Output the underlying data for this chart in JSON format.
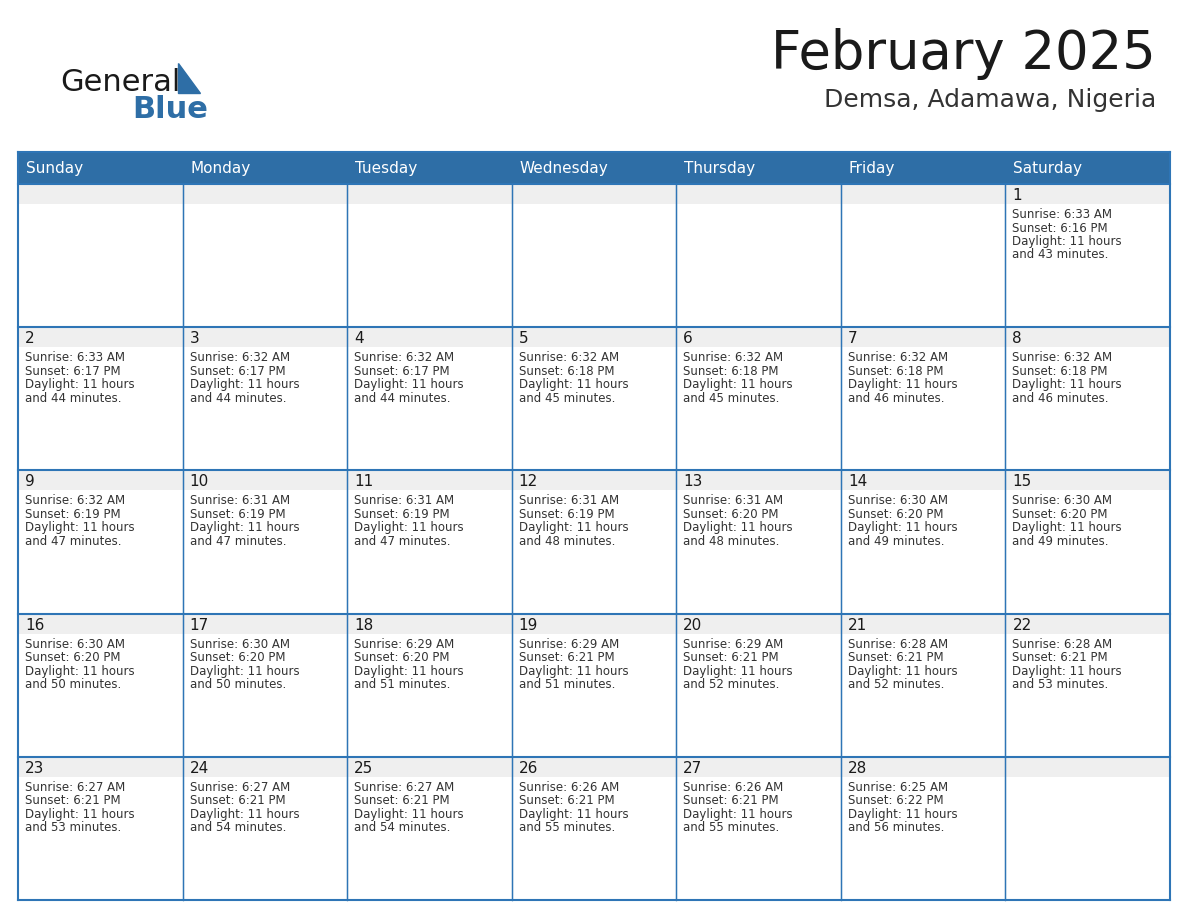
{
  "title": "February 2025",
  "subtitle": "Demsa, Adamawa, Nigeria",
  "header_bg": "#2E6EA6",
  "header_text": "#FFFFFF",
  "cell_bg_number": "#EFEFEF",
  "cell_bg_content": "#FFFFFF",
  "border_color": "#2E75B6",
  "day_names": [
    "Sunday",
    "Monday",
    "Tuesday",
    "Wednesday",
    "Thursday",
    "Friday",
    "Saturday"
  ],
  "title_color": "#1a1a1a",
  "subtitle_color": "#333333",
  "day_number_color": "#1a1a1a",
  "cell_text_color": "#333333",
  "logo_general_color": "#1a1a1a",
  "logo_blue_color": "#2E6EA6",
  "logo_triangle_color": "#2E6EA6",
  "weeks": [
    [
      {
        "day": 0,
        "info": ""
      },
      {
        "day": 0,
        "info": ""
      },
      {
        "day": 0,
        "info": ""
      },
      {
        "day": 0,
        "info": ""
      },
      {
        "day": 0,
        "info": ""
      },
      {
        "day": 0,
        "info": ""
      },
      {
        "day": 1,
        "info": "Sunrise: 6:33 AM\nSunset: 6:16 PM\nDaylight: 11 hours\nand 43 minutes."
      }
    ],
    [
      {
        "day": 2,
        "info": "Sunrise: 6:33 AM\nSunset: 6:17 PM\nDaylight: 11 hours\nand 44 minutes."
      },
      {
        "day": 3,
        "info": "Sunrise: 6:32 AM\nSunset: 6:17 PM\nDaylight: 11 hours\nand 44 minutes."
      },
      {
        "day": 4,
        "info": "Sunrise: 6:32 AM\nSunset: 6:17 PM\nDaylight: 11 hours\nand 44 minutes."
      },
      {
        "day": 5,
        "info": "Sunrise: 6:32 AM\nSunset: 6:18 PM\nDaylight: 11 hours\nand 45 minutes."
      },
      {
        "day": 6,
        "info": "Sunrise: 6:32 AM\nSunset: 6:18 PM\nDaylight: 11 hours\nand 45 minutes."
      },
      {
        "day": 7,
        "info": "Sunrise: 6:32 AM\nSunset: 6:18 PM\nDaylight: 11 hours\nand 46 minutes."
      },
      {
        "day": 8,
        "info": "Sunrise: 6:32 AM\nSunset: 6:18 PM\nDaylight: 11 hours\nand 46 minutes."
      }
    ],
    [
      {
        "day": 9,
        "info": "Sunrise: 6:32 AM\nSunset: 6:19 PM\nDaylight: 11 hours\nand 47 minutes."
      },
      {
        "day": 10,
        "info": "Sunrise: 6:31 AM\nSunset: 6:19 PM\nDaylight: 11 hours\nand 47 minutes."
      },
      {
        "day": 11,
        "info": "Sunrise: 6:31 AM\nSunset: 6:19 PM\nDaylight: 11 hours\nand 47 minutes."
      },
      {
        "day": 12,
        "info": "Sunrise: 6:31 AM\nSunset: 6:19 PM\nDaylight: 11 hours\nand 48 minutes."
      },
      {
        "day": 13,
        "info": "Sunrise: 6:31 AM\nSunset: 6:20 PM\nDaylight: 11 hours\nand 48 minutes."
      },
      {
        "day": 14,
        "info": "Sunrise: 6:30 AM\nSunset: 6:20 PM\nDaylight: 11 hours\nand 49 minutes."
      },
      {
        "day": 15,
        "info": "Sunrise: 6:30 AM\nSunset: 6:20 PM\nDaylight: 11 hours\nand 49 minutes."
      }
    ],
    [
      {
        "day": 16,
        "info": "Sunrise: 6:30 AM\nSunset: 6:20 PM\nDaylight: 11 hours\nand 50 minutes."
      },
      {
        "day": 17,
        "info": "Sunrise: 6:30 AM\nSunset: 6:20 PM\nDaylight: 11 hours\nand 50 minutes."
      },
      {
        "day": 18,
        "info": "Sunrise: 6:29 AM\nSunset: 6:20 PM\nDaylight: 11 hours\nand 51 minutes."
      },
      {
        "day": 19,
        "info": "Sunrise: 6:29 AM\nSunset: 6:21 PM\nDaylight: 11 hours\nand 51 minutes."
      },
      {
        "day": 20,
        "info": "Sunrise: 6:29 AM\nSunset: 6:21 PM\nDaylight: 11 hours\nand 52 minutes."
      },
      {
        "day": 21,
        "info": "Sunrise: 6:28 AM\nSunset: 6:21 PM\nDaylight: 11 hours\nand 52 minutes."
      },
      {
        "day": 22,
        "info": "Sunrise: 6:28 AM\nSunset: 6:21 PM\nDaylight: 11 hours\nand 53 minutes."
      }
    ],
    [
      {
        "day": 23,
        "info": "Sunrise: 6:27 AM\nSunset: 6:21 PM\nDaylight: 11 hours\nand 53 minutes."
      },
      {
        "day": 24,
        "info": "Sunrise: 6:27 AM\nSunset: 6:21 PM\nDaylight: 11 hours\nand 54 minutes."
      },
      {
        "day": 25,
        "info": "Sunrise: 6:27 AM\nSunset: 6:21 PM\nDaylight: 11 hours\nand 54 minutes."
      },
      {
        "day": 26,
        "info": "Sunrise: 6:26 AM\nSunset: 6:21 PM\nDaylight: 11 hours\nand 55 minutes."
      },
      {
        "day": 27,
        "info": "Sunrise: 6:26 AM\nSunset: 6:21 PM\nDaylight: 11 hours\nand 55 minutes."
      },
      {
        "day": 28,
        "info": "Sunrise: 6:25 AM\nSunset: 6:22 PM\nDaylight: 11 hours\nand 56 minutes."
      },
      {
        "day": 0,
        "info": ""
      }
    ]
  ],
  "fig_width": 11.88,
  "fig_height": 9.18,
  "dpi": 100
}
